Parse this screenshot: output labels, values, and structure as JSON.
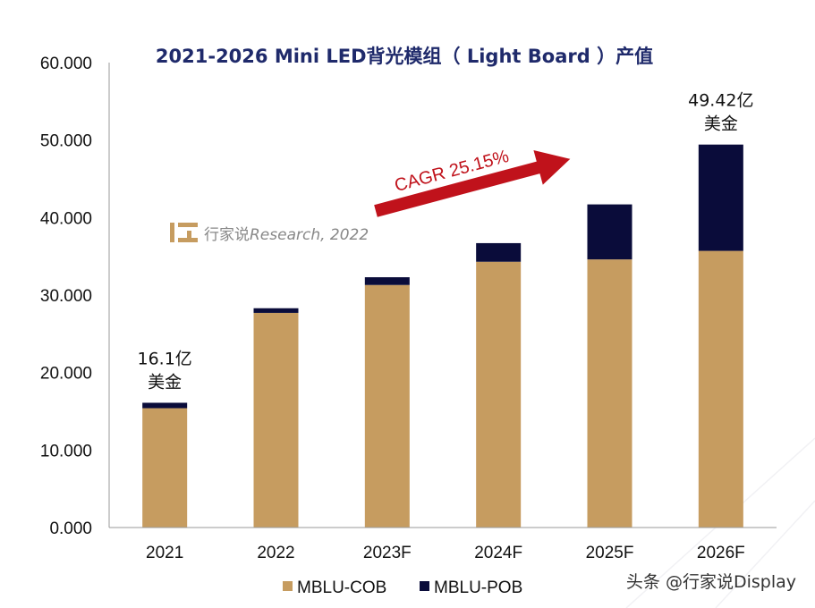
{
  "chart_data": {
    "type": "bar",
    "stacked": true,
    "title": "2021-2026 Mini LED背光模组（ Light Board ）产值",
    "categories": [
      "2021",
      "2022",
      "2023F",
      "2024F",
      "2025F",
      "2026F"
    ],
    "series": [
      {
        "name": "MBLU-COB",
        "color": "#c69c60",
        "values": [
          15.4,
          27.7,
          31.3,
          34.3,
          34.6,
          35.7
        ]
      },
      {
        "name": "MBLU-POB",
        "color": "#0a0c3a",
        "values": [
          0.7,
          0.6,
          1.0,
          2.4,
          7.1,
          13.72
        ]
      }
    ],
    "ylim": [
      0,
      60
    ],
    "yticks": [
      "0.000",
      "10.000",
      "20.000",
      "30.000",
      "40.000",
      "50.000",
      "60.000"
    ],
    "ytick_values": [
      0,
      10,
      20,
      30,
      40,
      50,
      60
    ],
    "grid": false,
    "legend_position": "bottom",
    "annotations": [
      {
        "category": "2021",
        "line1": "16.1亿",
        "line2": "美金"
      },
      {
        "category": "2026F",
        "line1": "49.42亿",
        "line2": "美金"
      }
    ],
    "cagr_label": "CAGR 25.15%",
    "cagr_color": "#c0121b"
  },
  "watermark": {
    "cn": "行家说",
    "en": "Research, 2022"
  },
  "footer": "头条 @行家说Display"
}
